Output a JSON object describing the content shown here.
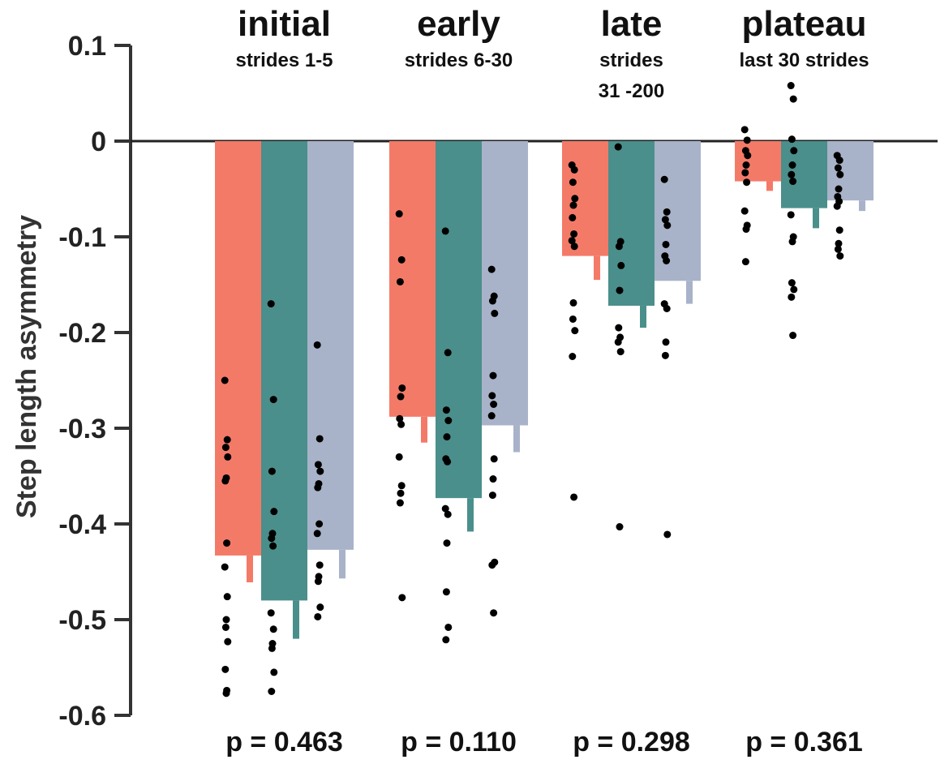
{
  "chart_data": {
    "type": "bar",
    "ylabel": "Step length asymmetry",
    "ylim": [
      -0.6,
      0.1
    ],
    "yticks": [
      0.1,
      0,
      -0.1,
      -0.2,
      -0.3,
      -0.4,
      -0.5,
      -0.6
    ],
    "ytick_labels": [
      "0.1",
      "0",
      "-0.1",
      "-0.2",
      "-0.3",
      "-0.4",
      "-0.5",
      "-0.6"
    ],
    "grid": false,
    "legend": "none",
    "series_colors": [
      "#f47a68",
      "#4a8f8b",
      "#a8b3ca"
    ],
    "categories": [
      {
        "title": "initial",
        "subtitle_lines": [
          "strides 1-5"
        ],
        "p_value": "p = 0.463",
        "bars": [
          {
            "mean": -0.433,
            "error": 0.028,
            "points": [
              -0.25,
              -0.312,
              -0.32,
              -0.33,
              -0.352,
              -0.355,
              -0.42,
              -0.445,
              -0.476,
              -0.5,
              -0.508,
              -0.523,
              -0.552,
              -0.574,
              -0.577
            ]
          },
          {
            "mean": -0.48,
            "error": 0.04,
            "points": [
              -0.17,
              -0.27,
              -0.345,
              -0.387,
              -0.41,
              -0.415,
              -0.423,
              -0.493,
              -0.51,
              -0.525,
              -0.53,
              -0.555,
              -0.575
            ]
          },
          {
            "mean": -0.427,
            "error": 0.03,
            "points": [
              -0.213,
              -0.311,
              -0.338,
              -0.345,
              -0.358,
              -0.362,
              -0.4,
              -0.41,
              -0.443,
              -0.455,
              -0.46,
              -0.487,
              -0.497
            ]
          }
        ]
      },
      {
        "title": "early",
        "subtitle_lines": [
          "strides 6-30"
        ],
        "p_value": "p = 0.110",
        "bars": [
          {
            "mean": -0.288,
            "error": 0.027,
            "points": [
              -0.076,
              -0.124,
              -0.147,
              -0.258,
              -0.267,
              -0.29,
              -0.296,
              -0.33,
              -0.36,
              -0.368,
              -0.378,
              -0.477
            ]
          },
          {
            "mean": -0.373,
            "error": 0.035,
            "points": [
              -0.094,
              -0.221,
              -0.281,
              -0.292,
              -0.309,
              -0.332,
              -0.335,
              -0.384,
              -0.39,
              -0.42,
              -0.471,
              -0.508,
              -0.521
            ]
          },
          {
            "mean": -0.297,
            "error": 0.028,
            "points": [
              -0.134,
              -0.162,
              -0.167,
              -0.18,
              -0.245,
              -0.266,
              -0.275,
              -0.287,
              -0.332,
              -0.353,
              -0.37,
              -0.44,
              -0.443,
              -0.493
            ]
          }
        ]
      },
      {
        "title": "late",
        "subtitle_lines": [
          "strides",
          "31 -200"
        ],
        "p_value": "p = 0.298",
        "bars": [
          {
            "mean": -0.12,
            "error": 0.025,
            "points": [
              -0.025,
              -0.03,
              -0.043,
              -0.06,
              -0.067,
              -0.08,
              -0.097,
              -0.104,
              -0.11,
              -0.169,
              -0.186,
              -0.198,
              -0.225,
              -0.372
            ]
          },
          {
            "mean": -0.172,
            "error": 0.023,
            "points": [
              -0.006,
              -0.105,
              -0.11,
              -0.13,
              -0.156,
              -0.195,
              -0.205,
              -0.21,
              -0.22,
              -0.403
            ]
          },
          {
            "mean": -0.146,
            "error": 0.024,
            "points": [
              -0.04,
              -0.074,
              -0.082,
              -0.088,
              -0.108,
              -0.12,
              -0.125,
              -0.17,
              -0.175,
              -0.21,
              -0.224,
              -0.411
            ]
          }
        ]
      },
      {
        "title": "plateau",
        "subtitle_lines": [
          "last 30 strides"
        ],
        "p_value": "p = 0.361",
        "bars": [
          {
            "mean": -0.042,
            "error": 0.01,
            "points": [
              0.012,
              0.001,
              -0.01,
              -0.015,
              -0.025,
              -0.033,
              -0.043,
              -0.073,
              -0.088,
              -0.092,
              -0.126
            ]
          },
          {
            "mean": -0.07,
            "error": 0.021,
            "points": [
              0.058,
              0.044,
              0.002,
              -0.01,
              -0.025,
              -0.035,
              -0.042,
              -0.077,
              -0.1,
              -0.105,
              -0.148,
              -0.155,
              -0.163,
              -0.203
            ]
          },
          {
            "mean": -0.062,
            "error": 0.011,
            "points": [
              -0.015,
              -0.02,
              -0.028,
              -0.035,
              -0.05,
              -0.058,
              -0.063,
              -0.068,
              -0.093,
              -0.107,
              -0.113,
              -0.12
            ]
          }
        ]
      }
    ]
  }
}
